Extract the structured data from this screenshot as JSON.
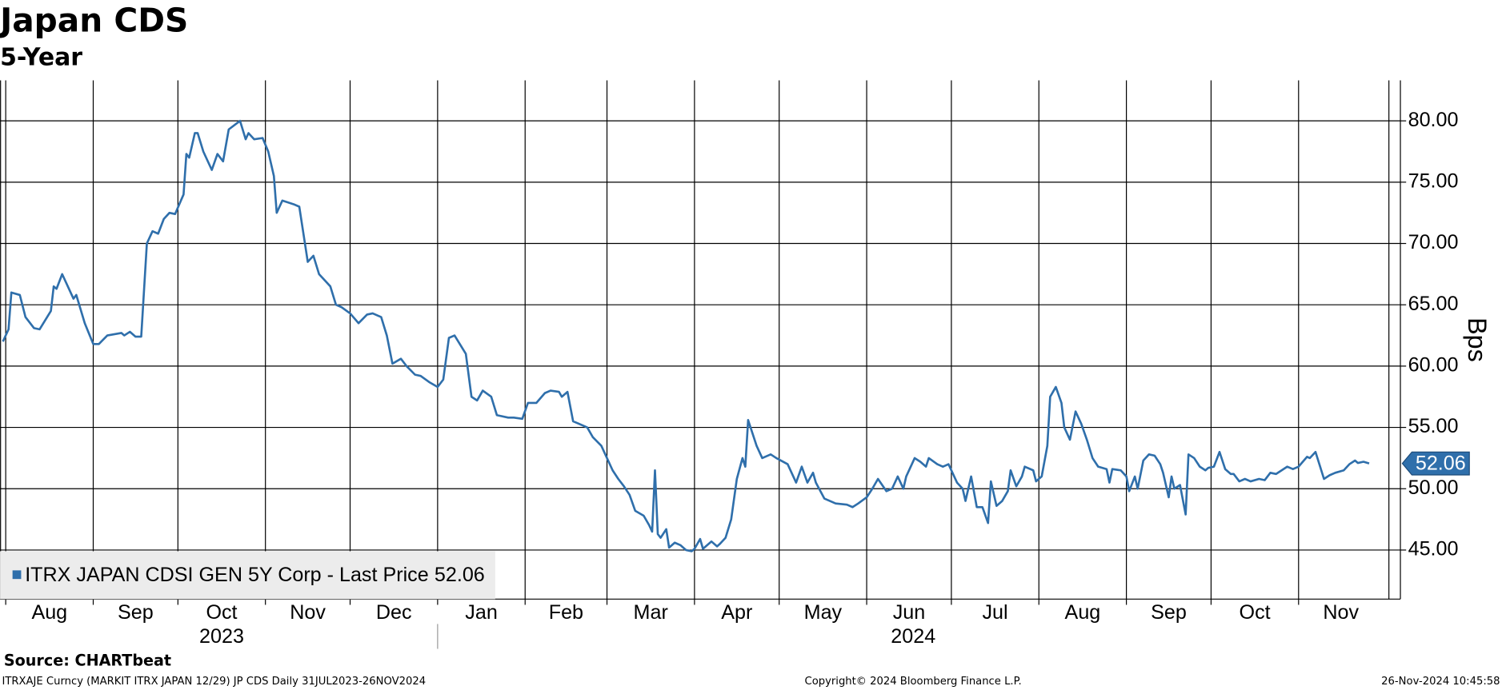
{
  "chart_data": {
    "type": "line",
    "title": "Japan CDS",
    "subtitle": "5-Year",
    "y_label": "Bps",
    "source": "Source: CHARTbeat",
    "footer": [
      "ITRXAJE Curncy (MARKIT ITRX JAPAN 12/29) JP CDS  Daily 31JUL2023-26NOV2024",
      "Copyright© 2024 Bloomberg Finance L.P.",
      "26-Nov-2024 10:45:58"
    ],
    "xlim": [
      "2023-07-30",
      "2024-12-03"
    ],
    "xticks": [
      {
        "value": "2023-08-01",
        "label": "Aug"
      },
      {
        "value": "2023-09-01",
        "label": "Sep"
      },
      {
        "value": "2023-10-01",
        "label": "Oct"
      },
      {
        "value": "2023-11-01",
        "label": "Nov"
      },
      {
        "value": "2023-12-01",
        "label": "Dec"
      },
      {
        "value": "2024-01-01",
        "label": "Jan"
      },
      {
        "value": "2024-02-01",
        "label": "Feb"
      },
      {
        "value": "2024-03-01",
        "label": "Mar"
      },
      {
        "value": "2024-04-01",
        "label": "Apr"
      },
      {
        "value": "2024-05-01",
        "label": "May"
      },
      {
        "value": "2024-06-01",
        "label": "Jun"
      },
      {
        "value": "2024-07-01",
        "label": "Jul"
      },
      {
        "value": "2024-08-01",
        "label": "Aug"
      },
      {
        "value": "2024-09-01",
        "label": "Sep"
      },
      {
        "value": "2024-10-01",
        "label": "Oct"
      },
      {
        "value": "2024-11-01",
        "label": "Nov"
      }
    ],
    "x_groups": [
      "2023",
      "2024"
    ],
    "ylim": [
      41,
      83.3
    ],
    "yticks": [
      {
        "value": 45,
        "label": "45.00"
      },
      {
        "value": 50,
        "label": "50.00"
      },
      {
        "value": 55,
        "label": "55.00"
      },
      {
        "value": 60,
        "label": "60.00"
      },
      {
        "value": 65,
        "label": "65.00"
      },
      {
        "value": 70,
        "label": "70.00"
      },
      {
        "value": 75,
        "label": "75.00"
      },
      {
        "value": 80,
        "label": "80.00"
      }
    ],
    "grid": true,
    "legend": "bottom-left",
    "x": [
      "2023-07-31",
      "2023-08-02",
      "2023-08-03",
      "2023-08-06",
      "2023-08-08",
      "2023-08-11",
      "2023-08-13",
      "2023-08-17",
      "2023-08-18",
      "2023-08-19",
      "2023-08-21",
      "2023-08-23",
      "2023-08-25",
      "2023-08-26",
      "2023-08-29",
      "2023-09-01",
      "2023-09-03",
      "2023-09-06",
      "2023-09-11",
      "2023-09-12",
      "2023-09-14",
      "2023-09-16",
      "2023-09-18",
      "2023-09-20",
      "2023-09-22",
      "2023-09-24",
      "2023-09-26",
      "2023-09-28",
      "2023-09-30",
      "2023-10-03",
      "2023-10-04",
      "2023-10-05",
      "2023-10-07",
      "2023-10-08",
      "2023-10-10",
      "2023-10-13",
      "2023-10-15",
      "2023-10-17",
      "2023-10-19",
      "2023-10-23",
      "2023-10-25",
      "2023-10-26",
      "2023-10-28",
      "2023-10-31",
      "2023-11-02",
      "2023-11-04",
      "2023-11-05",
      "2023-11-07",
      "2023-11-11",
      "2023-11-13",
      "2023-11-16",
      "2023-11-18",
      "2023-11-20",
      "2023-11-24",
      "2023-11-26",
      "2023-11-28",
      "2023-12-01",
      "2023-12-04",
      "2023-12-07",
      "2023-12-09",
      "2023-12-12",
      "2023-12-14",
      "2023-12-16",
      "2023-12-19",
      "2023-12-21",
      "2023-12-24",
      "2023-12-26",
      "2023-12-29",
      "2024-01-01",
      "2024-01-03",
      "2024-01-05",
      "2024-01-07",
      "2024-01-11",
      "2024-01-13",
      "2024-01-15",
      "2024-01-17",
      "2024-01-20",
      "2024-01-22",
      "2024-01-26",
      "2024-01-28",
      "2024-01-31",
      "2024-02-02",
      "2024-02-05",
      "2024-02-08",
      "2024-02-10",
      "2024-02-13",
      "2024-02-14",
      "2024-02-16",
      "2024-02-18",
      "2024-02-20",
      "2024-02-23",
      "2024-02-25",
      "2024-02-28",
      "2024-03-01",
      "2024-03-03",
      "2024-03-05",
      "2024-03-07",
      "2024-03-09",
      "2024-03-11",
      "2024-03-14",
      "2024-03-16",
      "2024-03-17",
      "2024-03-18",
      "2024-03-19",
      "2024-03-20",
      "2024-03-22",
      "2024-03-23",
      "2024-03-25",
      "2024-03-27",
      "2024-03-29",
      "2024-03-31",
      "2024-04-01",
      "2024-04-03",
      "2024-04-04",
      "2024-04-07",
      "2024-04-09",
      "2024-04-10",
      "2024-04-12",
      "2024-04-14",
      "2024-04-16",
      "2024-04-18",
      "2024-04-19",
      "2024-04-20",
      "2024-04-23",
      "2024-04-25",
      "2024-04-28",
      "2024-04-30",
      "2024-05-04",
      "2024-05-07",
      "2024-05-09",
      "2024-05-11",
      "2024-05-13",
      "2024-05-14",
      "2024-05-17",
      "2024-05-21",
      "2024-05-25",
      "2024-05-27",
      "2024-05-29",
      "2024-06-01",
      "2024-06-03",
      "2024-06-05",
      "2024-06-08",
      "2024-06-10",
      "2024-06-12",
      "2024-06-14",
      "2024-06-15",
      "2024-06-18",
      "2024-06-20",
      "2024-06-22",
      "2024-06-23",
      "2024-06-26",
      "2024-06-28",
      "2024-06-30",
      "2024-07-02",
      "2024-07-03",
      "2024-07-05",
      "2024-07-06",
      "2024-07-08",
      "2024-07-10",
      "2024-07-12",
      "2024-07-14",
      "2024-07-15",
      "2024-07-17",
      "2024-07-19",
      "2024-07-21",
      "2024-07-22",
      "2024-07-24",
      "2024-07-26",
      "2024-07-27",
      "2024-07-30",
      "2024-07-31",
      "2024-08-02",
      "2024-08-04",
      "2024-08-05",
      "2024-08-07",
      "2024-08-09",
      "2024-08-10",
      "2024-08-12",
      "2024-08-14",
      "2024-08-16",
      "2024-08-18",
      "2024-08-20",
      "2024-08-22",
      "2024-08-25",
      "2024-08-26",
      "2024-08-27",
      "2024-08-30",
      "2024-09-01",
      "2024-09-02",
      "2024-09-04",
      "2024-09-05",
      "2024-09-07",
      "2024-09-09",
      "2024-09-11",
      "2024-09-13",
      "2024-09-14",
      "2024-09-16",
      "2024-09-17",
      "2024-09-18",
      "2024-09-20",
      "2024-09-22",
      "2024-09-23",
      "2024-09-25",
      "2024-09-27",
      "2024-09-29",
      "2024-09-30",
      "2024-10-02",
      "2024-10-04",
      "2024-10-06",
      "2024-10-08",
      "2024-10-09",
      "2024-10-11",
      "2024-10-13",
      "2024-10-15",
      "2024-10-18",
      "2024-10-20",
      "2024-10-22",
      "2024-10-24",
      "2024-10-26",
      "2024-10-28",
      "2024-10-30",
      "2024-11-01",
      "2024-11-04",
      "2024-11-05",
      "2024-11-07",
      "2024-11-10",
      "2024-11-12",
      "2024-11-14",
      "2024-11-17",
      "2024-11-19",
      "2024-11-21",
      "2024-11-22",
      "2024-11-24",
      "2024-11-26"
    ],
    "series": [
      {
        "name": "ITRX JAPAN CDSI GEN 5Y Corp - Last Price",
        "color": "#2f6fab",
        "values": [
          62.0,
          63,
          66,
          65.8,
          64,
          63.1,
          63,
          64.5,
          66.5,
          66.3,
          67.5,
          66.5,
          65.5,
          65.8,
          63.5,
          61.8,
          61.8,
          62.5,
          62.7,
          62.5,
          62.8,
          62.4,
          62.4,
          70,
          71,
          70.8,
          72,
          72.5,
          72.4,
          74,
          77.3,
          77,
          79,
          79,
          77.5,
          76,
          77.3,
          76.7,
          79.3,
          80,
          78.5,
          79,
          78.5,
          78.6,
          77.5,
          75.5,
          72.5,
          73.5,
          73.2,
          73,
          68.5,
          69,
          67.5,
          66.5,
          65,
          64.8,
          64.3,
          63.5,
          64.2,
          64.3,
          64,
          62.5,
          60.2,
          60.6,
          60,
          59.3,
          59.2,
          58.7,
          58.3,
          58.9,
          62.3,
          62.5,
          61,
          57.5,
          57.2,
          58,
          57.5,
          56,
          55.8,
          55.8,
          55.7,
          57,
          57,
          57.8,
          58,
          57.9,
          57.5,
          57.9,
          55.5,
          55.3,
          55,
          54.2,
          53.5,
          52.5,
          51.5,
          50.8,
          50.2,
          49.5,
          48.2,
          47.8,
          47,
          46.5,
          51.5,
          46.3,
          46,
          46.7,
          45.2,
          45.6,
          45.4,
          45,
          44.9,
          45.1,
          45.9,
          45.1,
          45.7,
          45.3,
          45.5,
          46,
          47.5,
          50.8,
          52.5,
          51.8,
          55.6,
          53.5,
          52.5,
          52.8,
          52.5,
          52,
          50.5,
          51.8,
          50.5,
          51.3,
          50.5,
          49.2,
          48.8,
          48.7,
          48.5,
          48.8,
          49.3,
          50,
          50.8,
          49.8,
          50,
          51,
          50,
          51,
          52.5,
          52.2,
          51.8,
          52.5,
          52,
          51.8,
          52,
          51,
          50.5,
          50,
          49,
          51,
          48.5,
          48.5,
          47.2,
          50.6,
          48.6,
          49,
          49.8,
          51.5,
          50.2,
          51,
          51.8,
          51.5,
          50.6,
          51,
          53.5,
          57.5,
          58.3,
          57,
          55,
          54,
          56.3,
          55.3,
          54,
          52.5,
          51.8,
          51.6,
          50.5,
          51.6,
          51.5,
          51,
          49.8,
          51,
          50,
          52.3,
          52.8,
          52.7,
          52,
          51.3,
          49.3,
          51,
          50,
          50.3,
          47.9,
          52.8,
          52.5,
          51.8,
          51.5,
          51.7,
          51.8,
          53,
          51.6,
          51.2,
          51.2,
          50.6,
          50.8,
          50.6,
          50.8,
          50.7,
          51.3,
          51.2,
          51.5,
          51.8,
          51.6,
          51.8,
          52.6,
          52.5,
          53,
          50.8,
          51.1,
          51.3,
          51.5,
          52,
          52.3,
          52.1,
          52.2,
          52.06
        ]
      }
    ]
  }
}
